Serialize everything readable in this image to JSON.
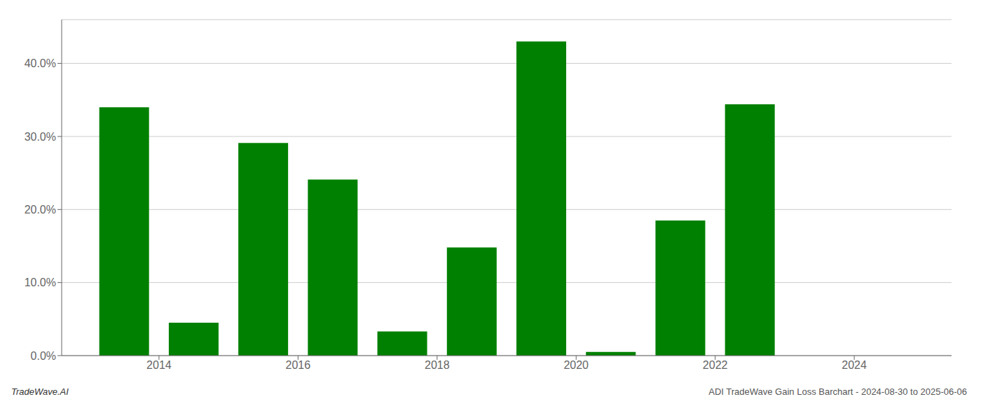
{
  "chart_data": {
    "type": "bar",
    "x": [
      2013.5,
      2014.5,
      2015.5,
      2016.5,
      2017.5,
      2018.5,
      2019.5,
      2020.5,
      2021.5,
      2022.5,
      2023.5
    ],
    "values": [
      0.34,
      0.045,
      0.291,
      0.241,
      0.033,
      0.148,
      0.43,
      0.005,
      0.185,
      0.344,
      0
    ],
    "color": "#008000",
    "xlim": [
      2012.6,
      2025.4
    ],
    "xticks": [
      2014,
      2016,
      2018,
      2020,
      2022,
      2024
    ],
    "ylim": [
      0,
      0.46
    ],
    "yticks": [
      {
        "value": 0,
        "label": "0.0%"
      },
      {
        "value": 0.1,
        "label": "10.0%"
      },
      {
        "value": 0.2,
        "label": "20.0%"
      },
      {
        "value": 0.3,
        "label": "30.0%"
      },
      {
        "value": 0.4,
        "label": "40.0%"
      }
    ],
    "grid": true,
    "annotations": [
      "TradeWave.AI",
      "ADI TradeWave Gain Loss Barchart - 2024-08-30 to 2025-06-06"
    ]
  }
}
